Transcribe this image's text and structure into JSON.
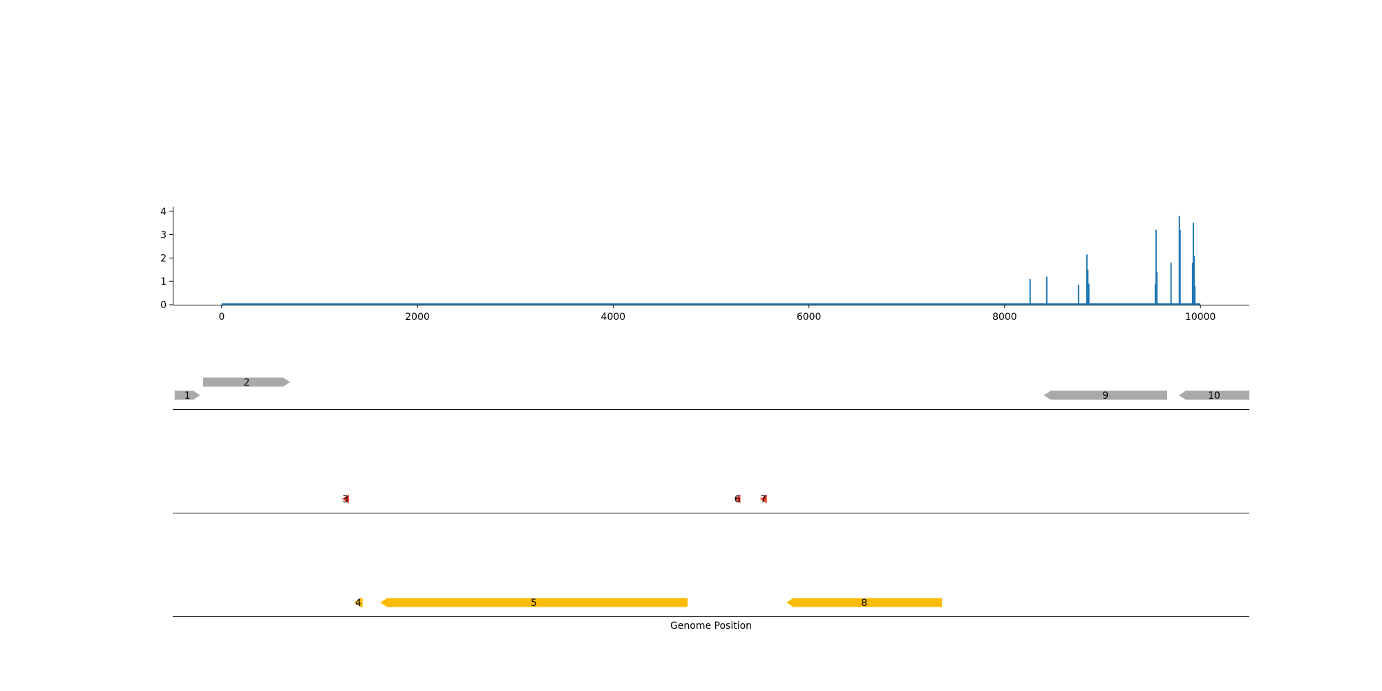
{
  "chart_data": [
    {
      "type": "line",
      "title": "",
      "xlabel": "",
      "ylabel": "",
      "xlim": [
        -500,
        10500
      ],
      "ylim": [
        0,
        4.2
      ],
      "x_ticks": [
        0,
        2000,
        4000,
        6000,
        8000,
        10000
      ],
      "x_tick_labels": [
        "0",
        "2000",
        "4000",
        "6000",
        "8000",
        "10000"
      ],
      "y_ticks": [
        0,
        1,
        2,
        3,
        4
      ],
      "y_tick_labels": [
        "0",
        "1",
        "2",
        "3",
        "4"
      ],
      "color": "#1f77b4",
      "grid": false,
      "baseline_x_range": [
        0,
        10000
      ],
      "series": [
        {
          "peaks": [
            {
              "x": 8260,
              "y": 1.1
            },
            {
              "x": 8430,
              "y": 1.2
            },
            {
              "x": 8755,
              "y": 0.85
            },
            {
              "x": 8840,
              "y": 2.15
            },
            {
              "x": 8850,
              "y": 1.5
            },
            {
              "x": 8860,
              "y": 0.9
            },
            {
              "x": 9540,
              "y": 0.9
            },
            {
              "x": 9548,
              "y": 3.2
            },
            {
              "x": 9556,
              "y": 1.4
            },
            {
              "x": 9700,
              "y": 1.8
            },
            {
              "x": 9785,
              "y": 3.8
            },
            {
              "x": 9792,
              "y": 3.2
            },
            {
              "x": 9920,
              "y": 1.8
            },
            {
              "x": 9928,
              "y": 3.5
            },
            {
              "x": 9936,
              "y": 2.1
            },
            {
              "x": 9944,
              "y": 0.8
            }
          ]
        }
      ]
    },
    {
      "type": "gene-track",
      "xlabel": "Genome Position",
      "xlim": [
        -500,
        10500
      ],
      "tracks": [
        {
          "color": "#a9a9a9",
          "features": [
            {
              "label": "1",
              "start": -480,
              "end": -220,
              "strand": "+",
              "row": 0
            },
            {
              "label": "2",
              "start": -190,
              "end": 700,
              "strand": "+",
              "row": 1
            },
            {
              "label": "9",
              "start": 8400,
              "end": 9660,
              "strand": "-",
              "row": 0
            },
            {
              "label": "10",
              "start": 9780,
              "end": 10500,
              "strand": "-",
              "row": 0
            }
          ]
        },
        {
          "color": "#e8442e",
          "features": [
            {
              "label": "3",
              "start": 1230,
              "end": 1300,
              "strand": "-",
              "row": 0
            },
            {
              "label": "6",
              "start": 5240,
              "end": 5300,
              "strand": "-",
              "row": 0
            },
            {
              "label": "7",
              "start": 5500,
              "end": 5570,
              "strand": "-",
              "row": 0
            }
          ]
        },
        {
          "color": "#fbbc05",
          "features": [
            {
              "label": "4",
              "start": 1350,
              "end": 1440,
              "strand": "-",
              "row": 0
            },
            {
              "label": "5",
              "start": 1620,
              "end": 4760,
              "strand": "-",
              "row": 0
            },
            {
              "label": "8",
              "start": 5770,
              "end": 7360,
              "strand": "-",
              "row": 0
            }
          ]
        }
      ]
    }
  ]
}
